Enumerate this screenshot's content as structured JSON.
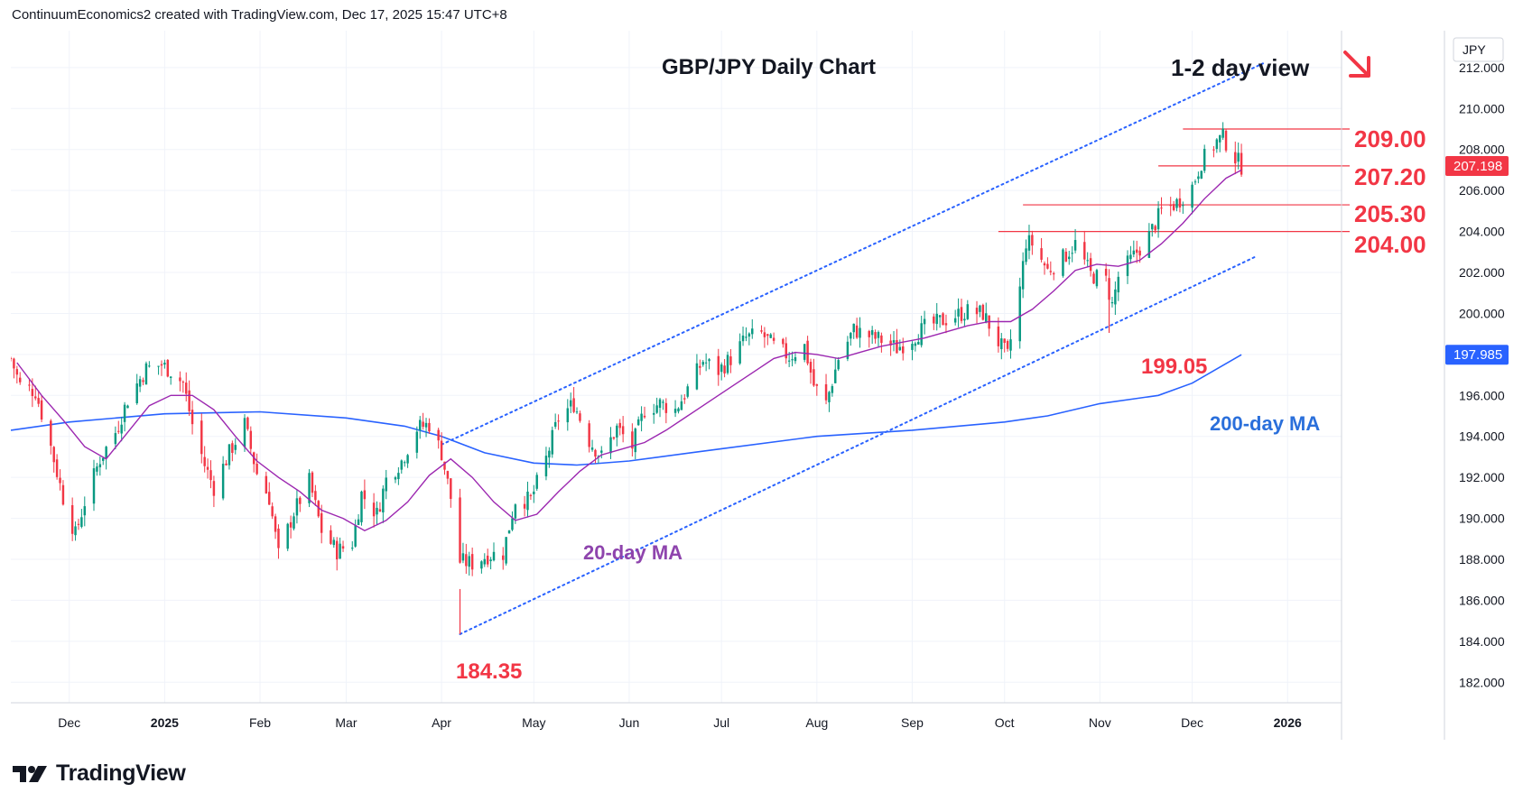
{
  "header": {
    "caption": "ContinuumEconomics2 created with TradingView.com, Dec 17, 2025 15:47 UTC+8"
  },
  "brand": {
    "name": "TradingView"
  },
  "colors": {
    "up": "#089981",
    "down": "#f23645",
    "ma20": "#9c27b0",
    "ma200": "#2962ff",
    "annotation_red": "#f23645",
    "channel": "#2962ff",
    "level_line": "#f23645",
    "ma20_label": "#8e44ad",
    "ma200_label": "#2a6fdb",
    "price_tag": "#f23645",
    "ma200_tag": "#2962ff"
  },
  "chart_data": {
    "type": "candlestick",
    "title": "GBP/JPY Daily Chart",
    "subtitle": "1-2 day view",
    "currency_label": "JPY",
    "y_axis": {
      "ylim": [
        181.0,
        213.8
      ],
      "ticks": [
        "182.000",
        "184.000",
        "186.000",
        "188.000",
        "190.000",
        "192.000",
        "194.000",
        "196.000",
        "198.000",
        "200.000",
        "202.000",
        "204.000",
        "206.000",
        "208.000",
        "210.000",
        "212.000"
      ]
    },
    "x_axis": {
      "start": "2024-11-12",
      "end": "2026-02-21",
      "ticks": [
        {
          "date": "2024-12-01",
          "label": "Dec"
        },
        {
          "date": "2025-01-01",
          "label": "2025"
        },
        {
          "date": "2025-02-01",
          "label": "Feb"
        },
        {
          "date": "2025-03-01",
          "label": "Mar"
        },
        {
          "date": "2025-04-01",
          "label": "Apr"
        },
        {
          "date": "2025-05-01",
          "label": "May"
        },
        {
          "date": "2025-06-01",
          "label": "Jun"
        },
        {
          "date": "2025-07-01",
          "label": "Jul"
        },
        {
          "date": "2025-08-01",
          "label": "Aug"
        },
        {
          "date": "2025-09-01",
          "label": "Sep"
        },
        {
          "date": "2025-10-01",
          "label": "Oct"
        },
        {
          "date": "2025-11-01",
          "label": "Nov"
        },
        {
          "date": "2025-12-01",
          "label": "Dec"
        },
        {
          "date": "2026-01-01",
          "label": "2026"
        }
      ]
    },
    "price_path": [
      [
        "2024-11-12",
        197.8
      ],
      [
        "2024-11-15",
        196.5
      ],
      [
        "2024-11-20",
        196.2
      ],
      [
        "2024-11-25",
        193.5
      ],
      [
        "2024-11-29",
        191.0
      ],
      [
        "2024-12-03",
        189.2
      ],
      [
        "2024-12-06",
        190.8
      ],
      [
        "2024-12-11",
        192.9
      ],
      [
        "2024-12-16",
        194.2
      ],
      [
        "2024-12-20",
        195.8
      ],
      [
        "2024-12-26",
        197.3
      ],
      [
        "2024-12-31",
        197.5
      ],
      [
        "2025-01-03",
        197.2
      ],
      [
        "2025-01-07",
        196.6
      ],
      [
        "2025-01-10",
        194.6
      ],
      [
        "2025-01-14",
        192.6
      ],
      [
        "2025-01-17",
        191.5
      ],
      [
        "2025-01-22",
        193.2
      ],
      [
        "2025-01-27",
        194.6
      ],
      [
        "2025-01-31",
        192.2
      ],
      [
        "2025-02-04",
        191.0
      ],
      [
        "2025-02-07",
        188.2
      ],
      [
        "2025-02-12",
        190.3
      ],
      [
        "2025-02-17",
        191.8
      ],
      [
        "2025-02-21",
        189.4
      ],
      [
        "2025-02-26",
        188.4
      ],
      [
        "2025-03-03",
        188.8
      ],
      [
        "2025-03-06",
        191.2
      ],
      [
        "2025-03-11",
        190.2
      ],
      [
        "2025-03-14",
        191.9
      ],
      [
        "2025-03-19",
        192.8
      ],
      [
        "2025-03-24",
        194.4
      ],
      [
        "2025-03-28",
        194.6
      ],
      [
        "2025-04-01",
        193.2
      ],
      [
        "2025-04-04",
        191.0
      ],
      [
        "2025-04-07",
        187.9
      ],
      [
        "2025-04-11",
        187.8
      ],
      [
        "2025-04-16",
        188.2
      ],
      [
        "2025-04-21",
        188.3
      ],
      [
        "2025-04-25",
        190.9
      ],
      [
        "2025-04-30",
        190.9
      ],
      [
        "2025-05-05",
        192.9
      ],
      [
        "2025-05-09",
        194.9
      ],
      [
        "2025-05-14",
        195.6
      ],
      [
        "2025-05-19",
        193.8
      ],
      [
        "2025-05-23",
        193.0
      ],
      [
        "2025-05-28",
        194.4
      ],
      [
        "2025-06-02",
        193.5
      ],
      [
        "2025-06-06",
        195.3
      ],
      [
        "2025-06-11",
        195.6
      ],
      [
        "2025-06-16",
        195.3
      ],
      [
        "2025-06-20",
        196.3
      ],
      [
        "2025-06-25",
        197.7
      ],
      [
        "2025-06-30",
        197.2
      ],
      [
        "2025-07-04",
        197.8
      ],
      [
        "2025-07-09",
        198.8
      ],
      [
        "2025-07-14",
        199.0
      ],
      [
        "2025-07-18",
        198.4
      ],
      [
        "2025-07-23",
        197.9
      ],
      [
        "2025-07-28",
        198.4
      ],
      [
        "2025-07-31",
        196.5
      ],
      [
        "2025-08-04",
        195.6
      ],
      [
        "2025-08-08",
        197.8
      ],
      [
        "2025-08-13",
        199.2
      ],
      [
        "2025-08-18",
        198.9
      ],
      [
        "2025-08-22",
        198.7
      ],
      [
        "2025-08-27",
        198.3
      ],
      [
        "2025-09-01",
        198.8
      ],
      [
        "2025-09-05",
        199.3
      ],
      [
        "2025-09-10",
        199.6
      ],
      [
        "2025-09-15",
        199.9
      ],
      [
        "2025-09-19",
        200.1
      ],
      [
        "2025-09-24",
        200.0
      ],
      [
        "2025-09-29",
        198.6
      ],
      [
        "2025-10-02",
        197.9
      ],
      [
        "2025-10-06",
        201.2
      ],
      [
        "2025-10-08",
        203.5
      ],
      [
        "2025-10-10",
        203.4
      ],
      [
        "2025-10-15",
        202.1
      ],
      [
        "2025-10-20",
        202.7
      ],
      [
        "2025-10-24",
        203.4
      ],
      [
        "2025-10-29",
        201.9
      ],
      [
        "2025-11-03",
        201.6
      ],
      [
        "2025-11-05",
        200.4
      ],
      [
        "2025-11-07",
        201.8
      ],
      [
        "2025-11-12",
        202.8
      ],
      [
        "2025-11-17",
        203.8
      ],
      [
        "2025-11-21",
        205.0
      ],
      [
        "2025-11-26",
        205.4
      ],
      [
        "2025-12-01",
        206.2
      ],
      [
        "2025-12-04",
        207.4
      ],
      [
        "2025-12-09",
        208.4
      ],
      [
        "2025-12-11",
        208.6
      ],
      [
        "2025-12-15",
        207.6
      ],
      [
        "2025-12-17",
        207.2
      ]
    ],
    "ma20_path": [
      [
        "2024-11-14",
        197.6
      ],
      [
        "2024-11-22",
        196.0
      ],
      [
        "2024-11-29",
        194.8
      ],
      [
        "2024-12-06",
        193.5
      ],
      [
        "2024-12-13",
        192.9
      ],
      [
        "2024-12-20",
        194.2
      ],
      [
        "2024-12-27",
        195.5
      ],
      [
        "2025-01-03",
        196.0
      ],
      [
        "2025-01-10",
        196.0
      ],
      [
        "2025-01-17",
        195.3
      ],
      [
        "2025-01-24",
        194.0
      ],
      [
        "2025-01-31",
        192.8
      ],
      [
        "2025-02-07",
        192.0
      ],
      [
        "2025-02-14",
        191.3
      ],
      [
        "2025-02-21",
        190.4
      ],
      [
        "2025-02-28",
        190.0
      ],
      [
        "2025-03-07",
        189.4
      ],
      [
        "2025-03-14",
        189.9
      ],
      [
        "2025-03-21",
        190.8
      ],
      [
        "2025-03-28",
        192.1
      ],
      [
        "2025-04-04",
        192.9
      ],
      [
        "2025-04-11",
        192.0
      ],
      [
        "2025-04-18",
        190.8
      ],
      [
        "2025-04-25",
        189.9
      ],
      [
        "2025-05-02",
        190.2
      ],
      [
        "2025-05-09",
        191.3
      ],
      [
        "2025-05-16",
        192.3
      ],
      [
        "2025-05-23",
        193.1
      ],
      [
        "2025-05-30",
        193.4
      ],
      [
        "2025-06-06",
        193.7
      ],
      [
        "2025-06-13",
        194.3
      ],
      [
        "2025-06-20",
        195.0
      ],
      [
        "2025-06-27",
        195.7
      ],
      [
        "2025-07-04",
        196.4
      ],
      [
        "2025-07-11",
        197.1
      ],
      [
        "2025-07-18",
        197.8
      ],
      [
        "2025-07-25",
        198.1
      ],
      [
        "2025-08-01",
        198.0
      ],
      [
        "2025-08-08",
        197.8
      ],
      [
        "2025-08-15",
        198.1
      ],
      [
        "2025-08-22",
        198.4
      ],
      [
        "2025-08-29",
        198.6
      ],
      [
        "2025-09-05",
        198.8
      ],
      [
        "2025-09-12",
        199.1
      ],
      [
        "2025-09-19",
        199.4
      ],
      [
        "2025-09-26",
        199.6
      ],
      [
        "2025-10-03",
        199.6
      ],
      [
        "2025-10-10",
        200.2
      ],
      [
        "2025-10-17",
        201.1
      ],
      [
        "2025-10-24",
        202.1
      ],
      [
        "2025-10-31",
        202.4
      ],
      [
        "2025-11-07",
        202.3
      ],
      [
        "2025-11-14",
        202.6
      ],
      [
        "2025-11-21",
        203.4
      ],
      [
        "2025-11-28",
        204.4
      ],
      [
        "2025-12-05",
        205.6
      ],
      [
        "2025-12-12",
        206.6
      ],
      [
        "2025-12-17",
        207.0
      ]
    ],
    "ma200_path": [
      [
        "2024-11-12",
        194.3
      ],
      [
        "2024-12-01",
        194.7
      ],
      [
        "2025-01-01",
        195.1
      ],
      [
        "2025-02-01",
        195.2
      ],
      [
        "2025-03-01",
        194.9
      ],
      [
        "2025-03-20",
        194.5
      ],
      [
        "2025-04-01",
        194.0
      ],
      [
        "2025-04-15",
        193.2
      ],
      [
        "2025-05-01",
        192.7
      ],
      [
        "2025-05-15",
        192.6
      ],
      [
        "2025-06-01",
        192.8
      ],
      [
        "2025-07-01",
        193.4
      ],
      [
        "2025-08-01",
        194.0
      ],
      [
        "2025-09-01",
        194.3
      ],
      [
        "2025-10-01",
        194.7
      ],
      [
        "2025-10-15",
        195.0
      ],
      [
        "2025-11-01",
        195.6
      ],
      [
        "2025-11-20",
        196.0
      ],
      [
        "2025-12-01",
        196.6
      ],
      [
        "2025-12-17",
        197.985
      ]
    ],
    "channel": {
      "upper": [
        [
          "2025-04-01",
          193.6
        ],
        [
          "2025-12-24",
          212.2
        ]
      ],
      "lower": [
        [
          "2025-04-07",
          184.35
        ],
        [
          "2025-12-22",
          202.8
        ]
      ]
    },
    "levels": [
      {
        "label": "209.00",
        "value": 209.0,
        "from": "2025-11-28"
      },
      {
        "label": "207.20",
        "value": 207.2,
        "from": "2025-11-20"
      },
      {
        "label": "205.30",
        "value": 205.3,
        "from": "2025-10-07"
      },
      {
        "label": "204.00",
        "value": 204.0,
        "from": "2025-09-29"
      }
    ],
    "annotations": {
      "low_1": {
        "label": "184.35",
        "date": "2025-04-07",
        "value": 184.35
      },
      "low_2": {
        "label": "199.05",
        "date": "2025-11-04",
        "value": 199.05
      },
      "ma20": {
        "label": "20-day MA",
        "date": "2025-05-01",
        "value": 188.9
      },
      "ma200": {
        "label": "200-day MA",
        "date": "2025-11-22",
        "value": 195.3
      }
    },
    "price_tags": {
      "last": {
        "value": 207.198,
        "label": "207.198"
      },
      "ma200": {
        "value": 197.985,
        "label": "197.985"
      }
    }
  }
}
